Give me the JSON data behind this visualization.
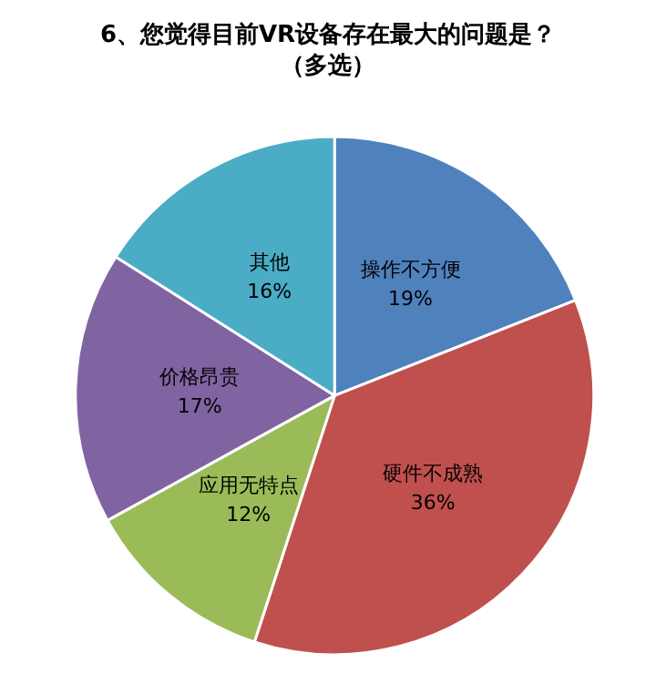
{
  "chart_data": {
    "type": "pie",
    "title": "6、您觉得目前VR设备存在最大的问题是？",
    "subtitle": "（多选）",
    "categories": [
      "操作不方便",
      "硬件不成熟",
      "应用无特点",
      "价格昂贵",
      "其他"
    ],
    "values": [
      19,
      36,
      12,
      17,
      16
    ],
    "value_labels": [
      "19%",
      "36%",
      "12%",
      "17%",
      "16%"
    ],
    "colors": [
      "#4f81bd",
      "#c0504d",
      "#9bbb59",
      "#8064a2",
      "#4bacc6"
    ],
    "legend": false
  }
}
